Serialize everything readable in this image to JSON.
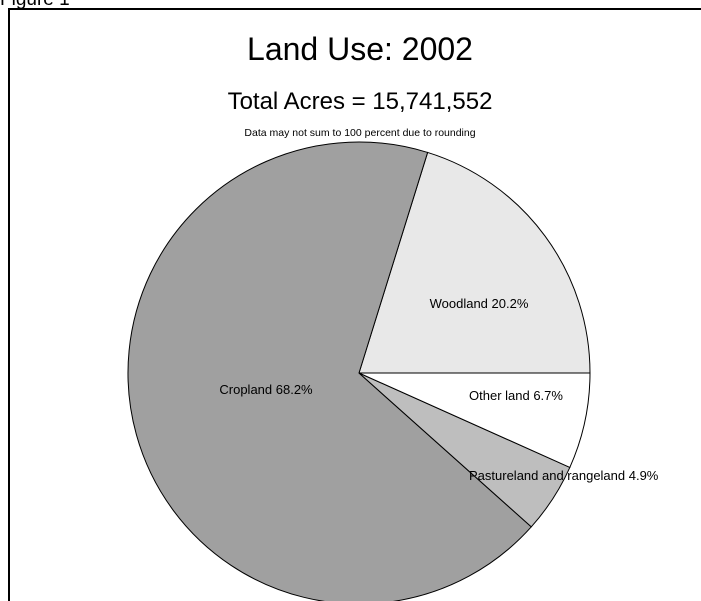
{
  "figure_label": "Figure 1",
  "chart_data": {
    "type": "pie",
    "title": "Land Use: 2002",
    "subtitle": "Total Acres = 15,741,552",
    "note": "Data may not sum to 100 percent due to rounding",
    "unit": "%",
    "start_angle_deg": 0,
    "direction": "counterclockwise",
    "slices": [
      {
        "label": "Woodland 20.2%",
        "value": 20.2,
        "color": "#e8e8e8"
      },
      {
        "label": "Cropland 68.2%",
        "value": 68.2,
        "color": "#a0a0a0"
      },
      {
        "label": "Pastureland and rangeland 4.9%",
        "value": 4.9,
        "color": "#bebebe"
      },
      {
        "label": "Other land 6.7%",
        "value": 6.7,
        "color": "#ffffff"
      }
    ]
  }
}
